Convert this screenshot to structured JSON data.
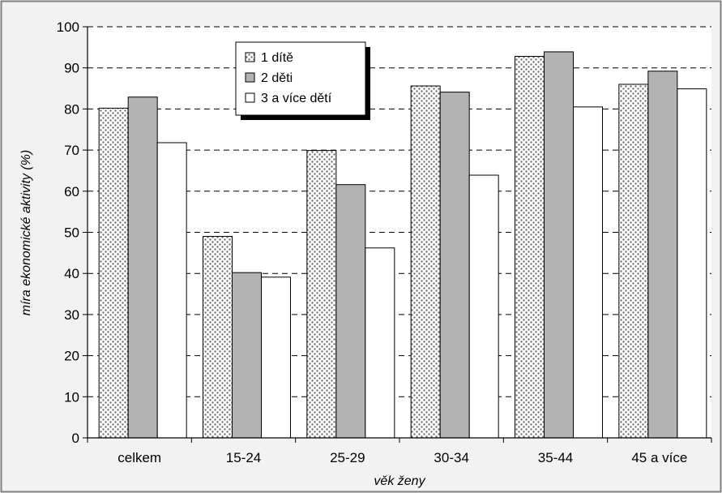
{
  "chart_data": {
    "type": "bar",
    "title": "",
    "xlabel": "věk ženy",
    "ylabel": "míra ekonomické aktivity (%)",
    "ylim": [
      0,
      100
    ],
    "yticks": [
      "0",
      "10",
      "20",
      "30",
      "40",
      "50",
      "60",
      "70",
      "80",
      "90",
      "100"
    ],
    "categories": [
      "celkem",
      "15-24",
      "25-29",
      "30-34",
      "35-44",
      "45 a více"
    ],
    "series": [
      {
        "name": "1 dítě",
        "values": [
          80.2,
          49.0,
          69.9,
          85.6,
          92.8,
          86.0
        ],
        "color": "#d9d9d9",
        "pattern": "dotted"
      },
      {
        "name": "2 děti",
        "values": [
          82.9,
          40.2,
          61.6,
          84.1,
          93.9,
          89.2
        ],
        "color": "#b3b3b3",
        "pattern": "solid"
      },
      {
        "name": "3 a více dětí",
        "values": [
          71.8,
          39.1,
          46.2,
          63.9,
          80.5,
          84.9
        ],
        "color": "#ffffff",
        "pattern": "solid"
      }
    ],
    "grid": "horizontal dashed",
    "legend_position": "top-left"
  }
}
